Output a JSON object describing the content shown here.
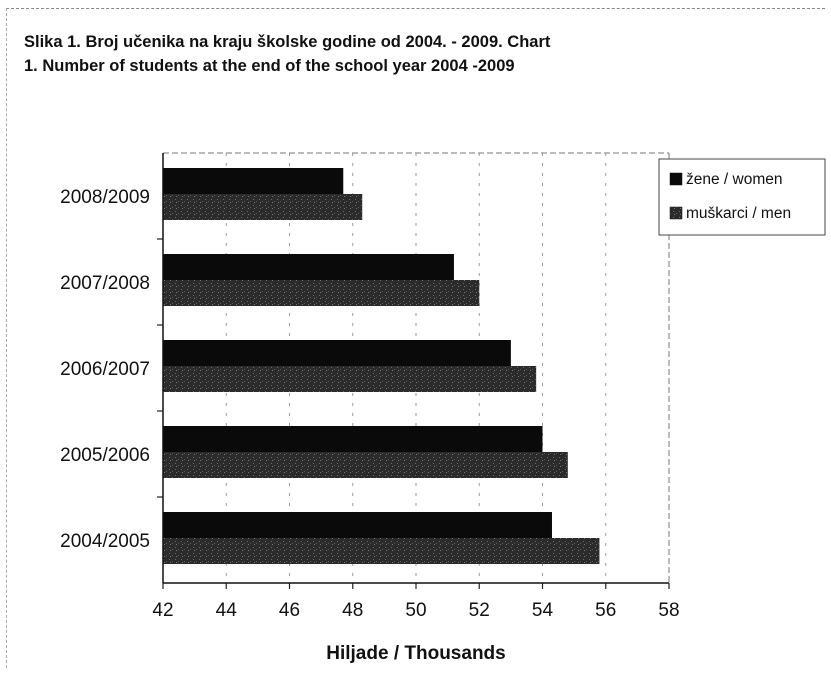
{
  "chart_data": {
    "type": "bar",
    "orientation": "horizontal",
    "title_line1": "Slika 1. Broj učenika na kraju školske godine od 2004. - 2009.  Chart",
    "title_line2": "1. Number of students at the end of the school year 2004 -2009",
    "xlabel": "Hiljade / Thousands",
    "ylabel": "",
    "xlim": [
      42,
      58
    ],
    "xticks": [
      42,
      44,
      46,
      48,
      50,
      52,
      54,
      56,
      58
    ],
    "categories": [
      "2008/2009",
      "2007/2008",
      "2006/2007",
      "2005/2006",
      "2004/2005"
    ],
    "series": [
      {
        "name": "žene / women",
        "values": [
          47.7,
          51.2,
          53.0,
          54.0,
          54.3
        ],
        "color": "#0a0a0a"
      },
      {
        "name": "muškarci / men",
        "values": [
          48.3,
          52.0,
          53.8,
          54.8,
          55.8
        ],
        "color": "#2e2e2e"
      }
    ],
    "grid": true,
    "legend_position": "top-right"
  }
}
